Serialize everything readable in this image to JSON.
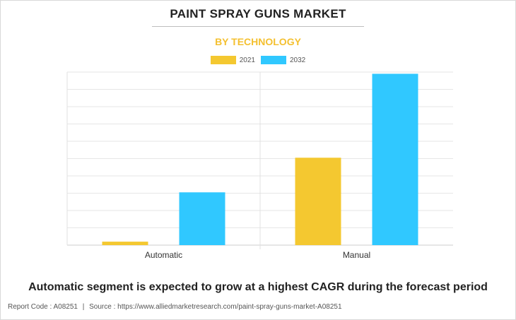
{
  "chart_data": {
    "type": "bar",
    "title": "PAINT SPRAY GUNS MARKET",
    "subtitle": "BY TECHNOLOGY",
    "categories": [
      "Automatic",
      "Manual"
    ],
    "series": [
      {
        "name": "2021",
        "color": "#f4c830",
        "values": [
          2,
          50.5
        ]
      },
      {
        "name": "2032",
        "color": "#30c8ff",
        "values": [
          30.5,
          99
        ]
      }
    ],
    "ylim": [
      0,
      100
    ],
    "grid": true,
    "legend": "top-center"
  },
  "caption": "Automatic segment is expected to grow at a highest CAGR during the forecast period",
  "footer": {
    "report_code": "Report Code : A08251",
    "separator": "|",
    "source": "Source : https://www.alliedmarketresearch.com/paint-spray-guns-market-A08251"
  }
}
